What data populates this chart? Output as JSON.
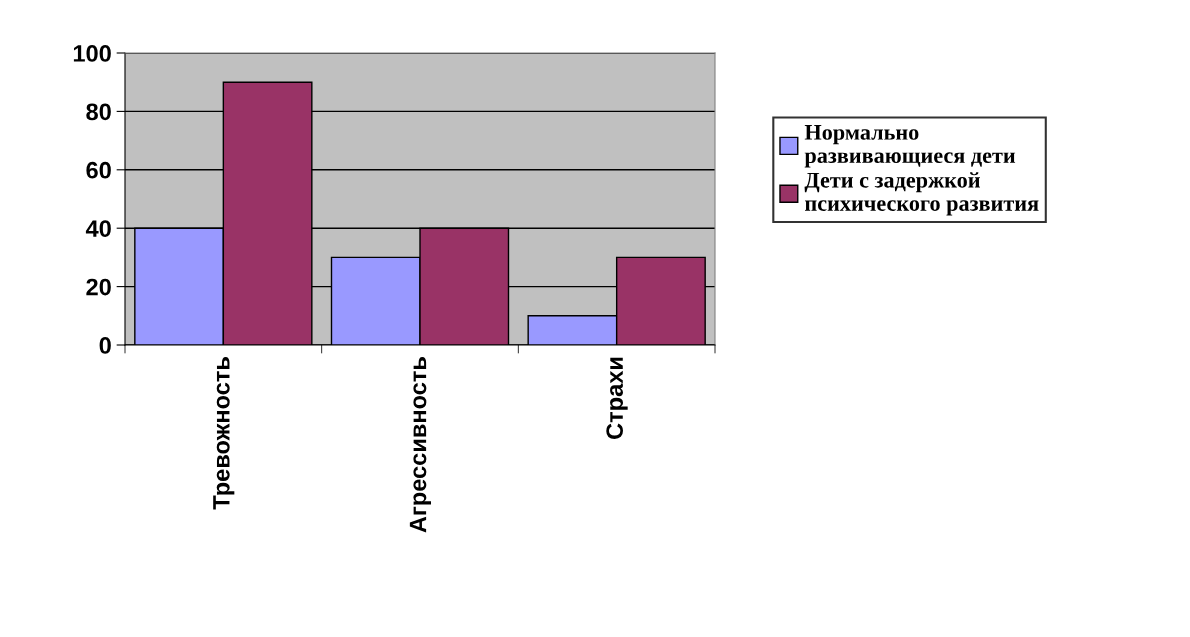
{
  "chart_data": {
    "type": "bar",
    "categories": [
      "Тревожность",
      "Агрессивность",
      "Страхи"
    ],
    "series": [
      {
        "name": "Нормально\nразвивающиеся дети",
        "color": "#9999ff",
        "values": [
          40,
          30,
          10
        ]
      },
      {
        "name": "Дети с задержкой\nпсихического развития",
        "color": "#993366",
        "values": [
          90,
          40,
          30
        ]
      }
    ],
    "ylim": [
      0,
      100
    ],
    "yticks": [
      0,
      20,
      40,
      60,
      80,
      100
    ],
    "grid": "y",
    "legend": "right"
  }
}
